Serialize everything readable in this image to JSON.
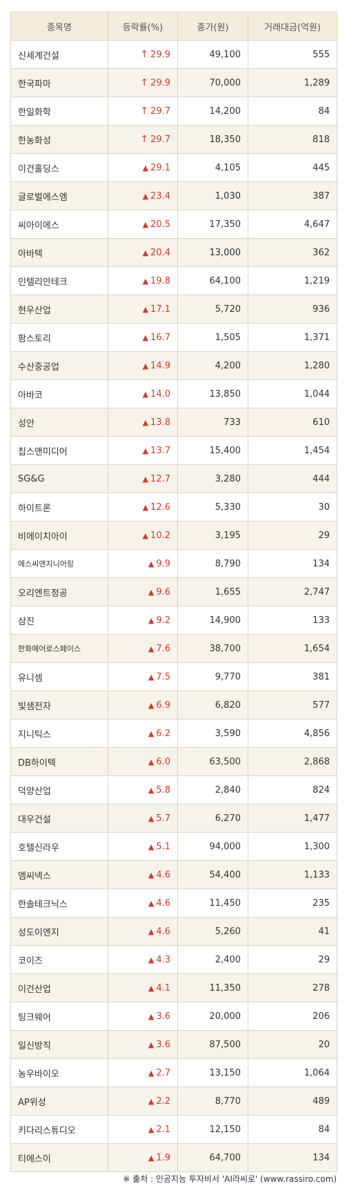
{
  "header": {
    "name": "종목명",
    "change": "등락률(%)",
    "price": "종가(원)",
    "volume": "거래대금(억원)"
  },
  "symbols": {
    "arrow": "↑",
    "triangle": "▲"
  },
  "rows": [
    {
      "name": "신세계건설",
      "sym": "arrow",
      "change": "29.9",
      "price": "49,100",
      "volume": "555"
    },
    {
      "name": "한국파마",
      "sym": "arrow",
      "change": "29.9",
      "price": "70,000",
      "volume": "1,289"
    },
    {
      "name": "한일화학",
      "sym": "arrow",
      "change": "29.7",
      "price": "14,200",
      "volume": "84"
    },
    {
      "name": "한농화성",
      "sym": "arrow",
      "change": "29.7",
      "price": "18,350",
      "volume": "818"
    },
    {
      "name": "이건홀딩스",
      "sym": "triangle",
      "change": "29.1",
      "price": "4,105",
      "volume": "445"
    },
    {
      "name": "글로벌에스엠",
      "sym": "triangle",
      "change": "23.4",
      "price": "1,030",
      "volume": "387"
    },
    {
      "name": "씨아이에스",
      "sym": "triangle",
      "change": "20.5",
      "price": "17,350",
      "volume": "4,647"
    },
    {
      "name": "아바텍",
      "sym": "triangle",
      "change": "20.4",
      "price": "13,000",
      "volume": "362"
    },
    {
      "name": "인텔리안테크",
      "sym": "triangle",
      "change": "19.8",
      "price": "64,100",
      "volume": "1,219"
    },
    {
      "name": "현우산업",
      "sym": "triangle",
      "change": "17.1",
      "price": "5,720",
      "volume": "936"
    },
    {
      "name": "팜스토리",
      "sym": "triangle",
      "change": "16.7",
      "price": "1,505",
      "volume": "1,371"
    },
    {
      "name": "수산중공업",
      "sym": "triangle",
      "change": "14.9",
      "price": "4,200",
      "volume": "1,280"
    },
    {
      "name": "아바코",
      "sym": "triangle",
      "change": "14.0",
      "price": "13,850",
      "volume": "1,044"
    },
    {
      "name": "성안",
      "sym": "triangle",
      "change": "13.8",
      "price": "733",
      "volume": "610"
    },
    {
      "name": "칩스앤미디어",
      "sym": "triangle",
      "change": "13.7",
      "price": "15,400",
      "volume": "1,454"
    },
    {
      "name": "SG&G",
      "sym": "triangle",
      "change": "12.7",
      "price": "3,280",
      "volume": "444"
    },
    {
      "name": "하이트론",
      "sym": "triangle",
      "change": "12.6",
      "price": "5,330",
      "volume": "30"
    },
    {
      "name": "비에이치아이",
      "sym": "triangle",
      "change": "10.2",
      "price": "3,195",
      "volume": "29"
    },
    {
      "name": "에스씨엔지니어링",
      "sym": "triangle",
      "change": "9.9",
      "price": "8,790",
      "volume": "134",
      "small": true
    },
    {
      "name": "오리엔트정공",
      "sym": "triangle",
      "change": "9.6",
      "price": "1,655",
      "volume": "2,747"
    },
    {
      "name": "삼진",
      "sym": "triangle",
      "change": "9.2",
      "price": "14,900",
      "volume": "133"
    },
    {
      "name": "한화에어로스페이스",
      "sym": "triangle",
      "change": "7.6",
      "price": "38,700",
      "volume": "1,654",
      "small": true
    },
    {
      "name": "유니셈",
      "sym": "triangle",
      "change": "7.5",
      "price": "9,770",
      "volume": "381"
    },
    {
      "name": "빛샘전자",
      "sym": "triangle",
      "change": "6.9",
      "price": "6,820",
      "volume": "577"
    },
    {
      "name": "지니틱스",
      "sym": "triangle",
      "change": "6.2",
      "price": "3,590",
      "volume": "4,856"
    },
    {
      "name": "DB하이텍",
      "sym": "triangle",
      "change": "6.0",
      "price": "63,500",
      "volume": "2,868"
    },
    {
      "name": "덕양산업",
      "sym": "triangle",
      "change": "5.8",
      "price": "2,840",
      "volume": "824"
    },
    {
      "name": "대우건설",
      "sym": "triangle",
      "change": "5.7",
      "price": "6,270",
      "volume": "1,477"
    },
    {
      "name": "호텔신라우",
      "sym": "triangle",
      "change": "5.1",
      "price": "94,000",
      "volume": "1,300"
    },
    {
      "name": "엠씨넥스",
      "sym": "triangle",
      "change": "4.6",
      "price": "54,400",
      "volume": "1,133"
    },
    {
      "name": "한솔테크닉스",
      "sym": "triangle",
      "change": "4.6",
      "price": "11,450",
      "volume": "235"
    },
    {
      "name": "성도이엔지",
      "sym": "triangle",
      "change": "4.6",
      "price": "5,260",
      "volume": "41"
    },
    {
      "name": "코이즈",
      "sym": "triangle",
      "change": "4.3",
      "price": "2,400",
      "volume": "29"
    },
    {
      "name": "이건산업",
      "sym": "triangle",
      "change": "4.1",
      "price": "11,350",
      "volume": "278"
    },
    {
      "name": "팅크웨어",
      "sym": "triangle",
      "change": "3.6",
      "price": "20,000",
      "volume": "206"
    },
    {
      "name": "일신방직",
      "sym": "triangle",
      "change": "3.6",
      "price": "87,500",
      "volume": "20"
    },
    {
      "name": "농우바이오",
      "sym": "triangle",
      "change": "2.7",
      "price": "13,150",
      "volume": "1,064"
    },
    {
      "name": "AP위성",
      "sym": "triangle",
      "change": "2.2",
      "price": "8,770",
      "volume": "489"
    },
    {
      "name": "키다리스튜디오",
      "sym": "triangle",
      "change": "2.1",
      "price": "12,150",
      "volume": "84"
    },
    {
      "name": "티에스이",
      "sym": "triangle",
      "change": "1.9",
      "price": "64,700",
      "volume": "134"
    }
  ],
  "footer": {
    "text": "※ 출처 : 인공지능 투자비서 'AI라씨로' (www.rassiro.com)"
  },
  "colors": {
    "up": "#d43a2a",
    "header_bg": "#f2eddc",
    "stripe_bg": "#f6f3ea"
  }
}
